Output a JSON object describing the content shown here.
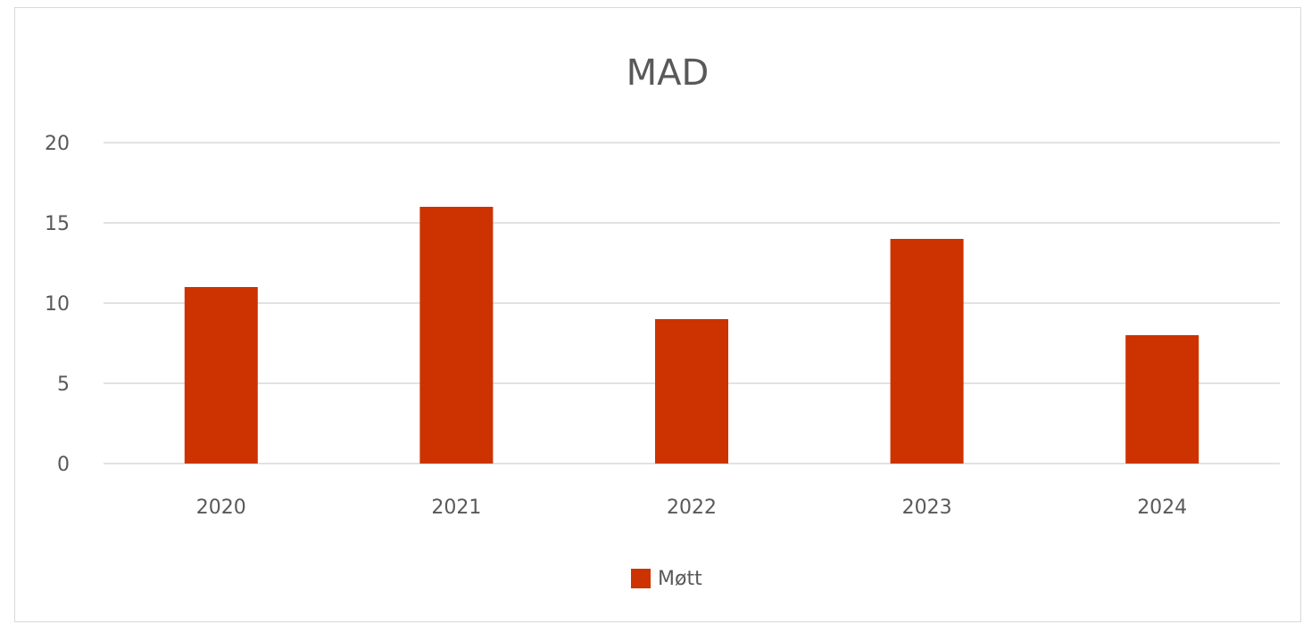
{
  "chart_data": {
    "type": "bar",
    "title": "MAD",
    "categories": [
      "2020",
      "2021",
      "2022",
      "2023",
      "2024"
    ],
    "series": [
      {
        "name": "Møtt",
        "values": [
          11,
          16,
          9,
          14,
          8
        ],
        "color": "#cc3300"
      }
    ],
    "ylim": [
      0,
      20
    ],
    "yticks": [
      0,
      5,
      10,
      15,
      20
    ],
    "xlabel": "",
    "ylabel": "",
    "grid": true,
    "legend": "bottom-center"
  }
}
